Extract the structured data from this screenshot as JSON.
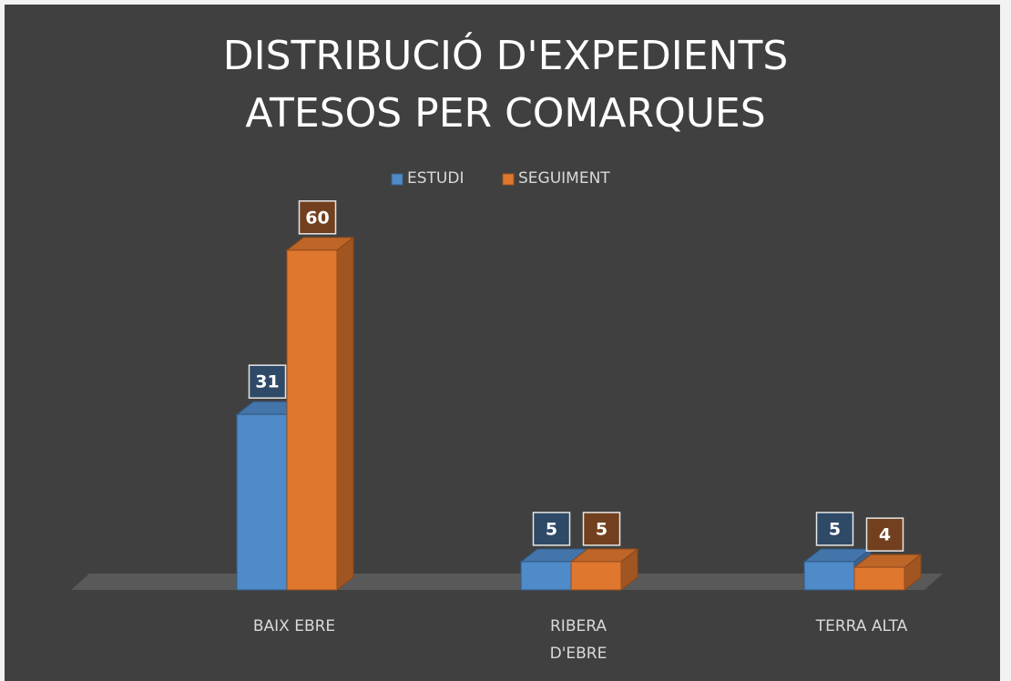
{
  "chart_data": {
    "type": "bar3d",
    "title": "DISTRIBUCIÓ D'EXPEDIENTS ATESOS PER COMARQUES",
    "categories": [
      "BAIX EBRE",
      "RIBERA D'EBRE",
      "TERRA ALTA"
    ],
    "series": [
      {
        "name": "ESTUDI",
        "color": "#4f8ac9",
        "values": [
          31,
          5,
          5
        ]
      },
      {
        "name": "SEGUIMENT",
        "color": "#e0772f",
        "values": [
          60,
          5,
          4
        ]
      }
    ],
    "legend": "top"
  }
}
